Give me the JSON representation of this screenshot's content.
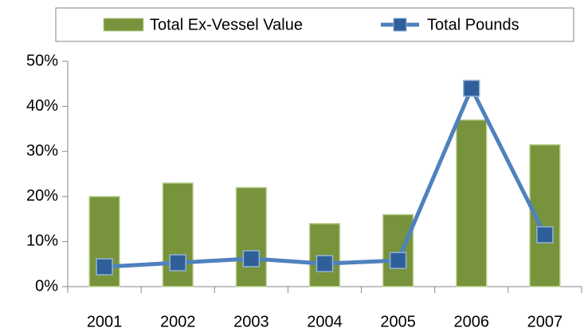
{
  "chart_data": {
    "type": "bar",
    "categories": [
      "2001",
      "2002",
      "2003",
      "2004",
      "2005",
      "2006",
      "2007"
    ],
    "series": [
      {
        "name": "Total Ex-Vessel Value",
        "type": "bar",
        "color": "#77933c",
        "values": [
          20,
          23,
          22,
          14,
          16,
          37,
          31.5
        ]
      },
      {
        "name": "Total Pounds",
        "type": "line",
        "color": "#4f81bd",
        "values": [
          4.4,
          5.3,
          6.2,
          5.1,
          5.8,
          44,
          11.5
        ]
      }
    ],
    "ylim": [
      0,
      50
    ],
    "yticks": [
      {
        "value": 0,
        "label": "0%"
      },
      {
        "value": 10,
        "label": "10%"
      },
      {
        "value": 20,
        "label": "20%"
      },
      {
        "value": 30,
        "label": "30%"
      },
      {
        "value": 40,
        "label": "40%"
      },
      {
        "value": 50,
        "label": "50%"
      }
    ],
    "grid": false,
    "legend": "top"
  }
}
